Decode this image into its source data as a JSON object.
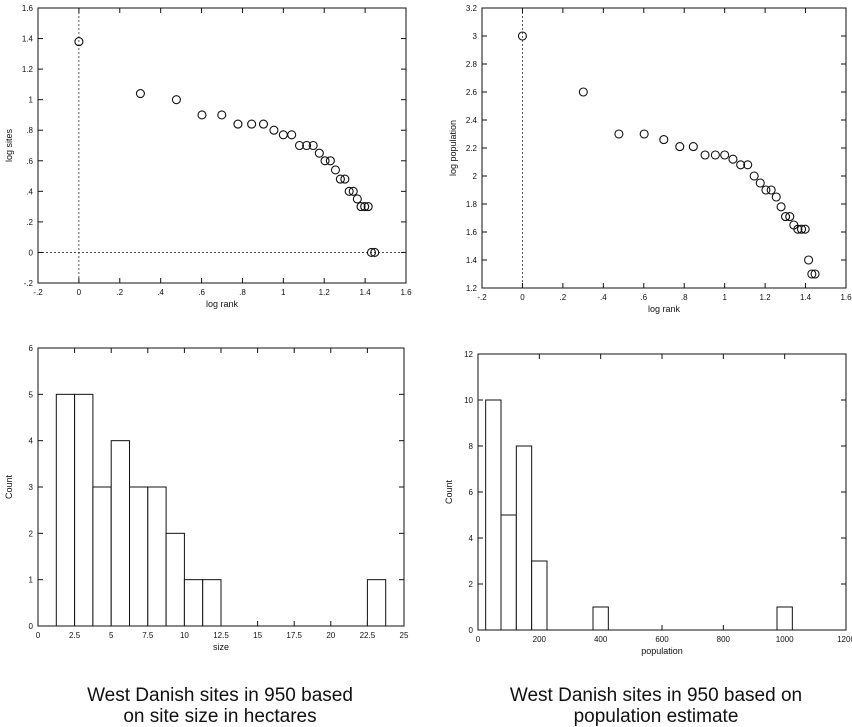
{
  "captions": {
    "left": [
      "West Danish sites in 950 based",
      "on site size in hectares"
    ],
    "right": [
      "West Danish sites in 950 based on",
      "population estimate"
    ]
  },
  "chart_data": [
    {
      "id": "size-rank",
      "type": "scatter",
      "xlabel": "log rank",
      "ylabel": "log sites",
      "xlim": [
        -0.2,
        1.6
      ],
      "ylim": [
        -0.2,
        1.6
      ],
      "xticks": [
        -0.2,
        0,
        0.2,
        0.4,
        0.6,
        0.8,
        1.0,
        1.2,
        1.4,
        1.6
      ],
      "xtick_labels": [
        "-.2",
        "0",
        ".2",
        ".4",
        ".6",
        ".8",
        "1",
        "1.2",
        "1.4",
        "1.6"
      ],
      "yticks": [
        -0.2,
        0,
        0.2,
        0.4,
        0.6,
        0.8,
        1.0,
        1.2,
        1.4,
        1.6
      ],
      "ytick_labels": [
        "-.2",
        "0",
        ".2",
        ".4",
        ".6",
        ".8",
        "1",
        "1.2",
        "1.4",
        "1.6"
      ],
      "refs": {
        "x": 0,
        "y": 0
      },
      "x": [
        0.0,
        0.301,
        0.477,
        0.602,
        0.699,
        0.778,
        0.845,
        0.903,
        0.954,
        1.0,
        1.041,
        1.079,
        1.114,
        1.146,
        1.176,
        1.204,
        1.23,
        1.255,
        1.279,
        1.301,
        1.322,
        1.342,
        1.362,
        1.38,
        1.398,
        1.415,
        1.431,
        1.447
      ],
      "y": [
        1.38,
        1.04,
        1.0,
        0.9,
        0.9,
        0.84,
        0.84,
        0.84,
        0.8,
        0.77,
        0.77,
        0.7,
        0.7,
        0.7,
        0.65,
        0.6,
        0.6,
        0.54,
        0.48,
        0.48,
        0.4,
        0.4,
        0.35,
        0.3,
        0.3,
        0.3,
        0.0,
        0.0
      ]
    },
    {
      "id": "pop-rank",
      "type": "scatter",
      "xlabel": "log rank",
      "ylabel": "log population",
      "xlim": [
        -0.2,
        1.6
      ],
      "ylim": [
        1.2,
        3.2
      ],
      "xticks": [
        -0.2,
        0,
        0.2,
        0.4,
        0.6,
        0.8,
        1.0,
        1.2,
        1.4,
        1.6
      ],
      "xtick_labels": [
        "-.2",
        "0",
        ".2",
        ".4",
        ".6",
        ".8",
        "1",
        "1.2",
        "1.4",
        "1.6"
      ],
      "yticks": [
        1.2,
        1.4,
        1.6,
        1.8,
        2.0,
        2.2,
        2.4,
        2.6,
        2.8,
        3.0,
        3.2
      ],
      "ytick_labels": [
        "1.2",
        "1.4",
        "1.6",
        "1.8",
        "2",
        "2.2",
        "2.4",
        "2.6",
        "2.8",
        "3",
        "3.2"
      ],
      "refs": {
        "x": 0
      },
      "x": [
        0.0,
        0.301,
        0.477,
        0.602,
        0.699,
        0.778,
        0.845,
        0.903,
        0.954,
        1.0,
        1.041,
        1.079,
        1.114,
        1.146,
        1.176,
        1.204,
        1.23,
        1.255,
        1.279,
        1.301,
        1.322,
        1.342,
        1.362,
        1.38,
        1.398,
        1.415,
        1.431,
        1.447
      ],
      "y": [
        3.0,
        2.6,
        2.3,
        2.3,
        2.26,
        2.21,
        2.21,
        2.15,
        2.15,
        2.15,
        2.12,
        2.08,
        2.08,
        2.0,
        1.95,
        1.9,
        1.9,
        1.85,
        1.78,
        1.71,
        1.71,
        1.65,
        1.62,
        1.62,
        1.62,
        1.4,
        1.3,
        1.3
      ]
    },
    {
      "id": "size-hist",
      "type": "bar",
      "xlabel": "size",
      "ylabel": "Count",
      "xlim": [
        0,
        25
      ],
      "ylim": [
        0,
        6
      ],
      "bin_width": 1.25,
      "bins": [
        {
          "start": 1.25,
          "count": 5
        },
        {
          "start": 2.5,
          "count": 5
        },
        {
          "start": 3.75,
          "count": 3
        },
        {
          "start": 5.0,
          "count": 4
        },
        {
          "start": 6.25,
          "count": 3
        },
        {
          "start": 7.5,
          "count": 3
        },
        {
          "start": 8.75,
          "count": 2
        },
        {
          "start": 10.0,
          "count": 1
        },
        {
          "start": 11.25,
          "count": 1
        },
        {
          "start": 22.5,
          "count": 1
        }
      ],
      "xticks": [
        0,
        2.5,
        5,
        7.5,
        10,
        12.5,
        15,
        17.5,
        20,
        22.5,
        25
      ],
      "xtick_labels": [
        "0",
        "2.5",
        "5",
        "7.5",
        "10",
        "12.5",
        "15",
        "17.5",
        "20",
        "22.5",
        "25"
      ],
      "yticks": [
        0,
        1,
        2,
        3,
        4,
        5,
        6
      ],
      "ytick_labels": [
        "0",
        "1",
        "2",
        "3",
        "4",
        "5",
        "6"
      ]
    },
    {
      "id": "pop-hist",
      "type": "bar",
      "xlabel": "population",
      "ylabel": "Count",
      "xlim": [
        0,
        1200
      ],
      "ylim": [
        0,
        12
      ],
      "bin_width": 50,
      "bins": [
        {
          "start": 25,
          "count": 10
        },
        {
          "start": 75,
          "count": 5
        },
        {
          "start": 125,
          "count": 8
        },
        {
          "start": 175,
          "count": 3
        },
        {
          "start": 375,
          "count": 1
        },
        {
          "start": 975,
          "count": 1
        }
      ],
      "xticks": [
        0,
        200,
        400,
        600,
        800,
        1000,
        1200
      ],
      "xtick_labels": [
        "0",
        "200",
        "400",
        "600",
        "800",
        "1000",
        "1200"
      ],
      "yticks": [
        0,
        2,
        4,
        6,
        8,
        10,
        12
      ],
      "ytick_labels": [
        "0",
        "2",
        "4",
        "6",
        "8",
        "10",
        "12"
      ]
    }
  ]
}
